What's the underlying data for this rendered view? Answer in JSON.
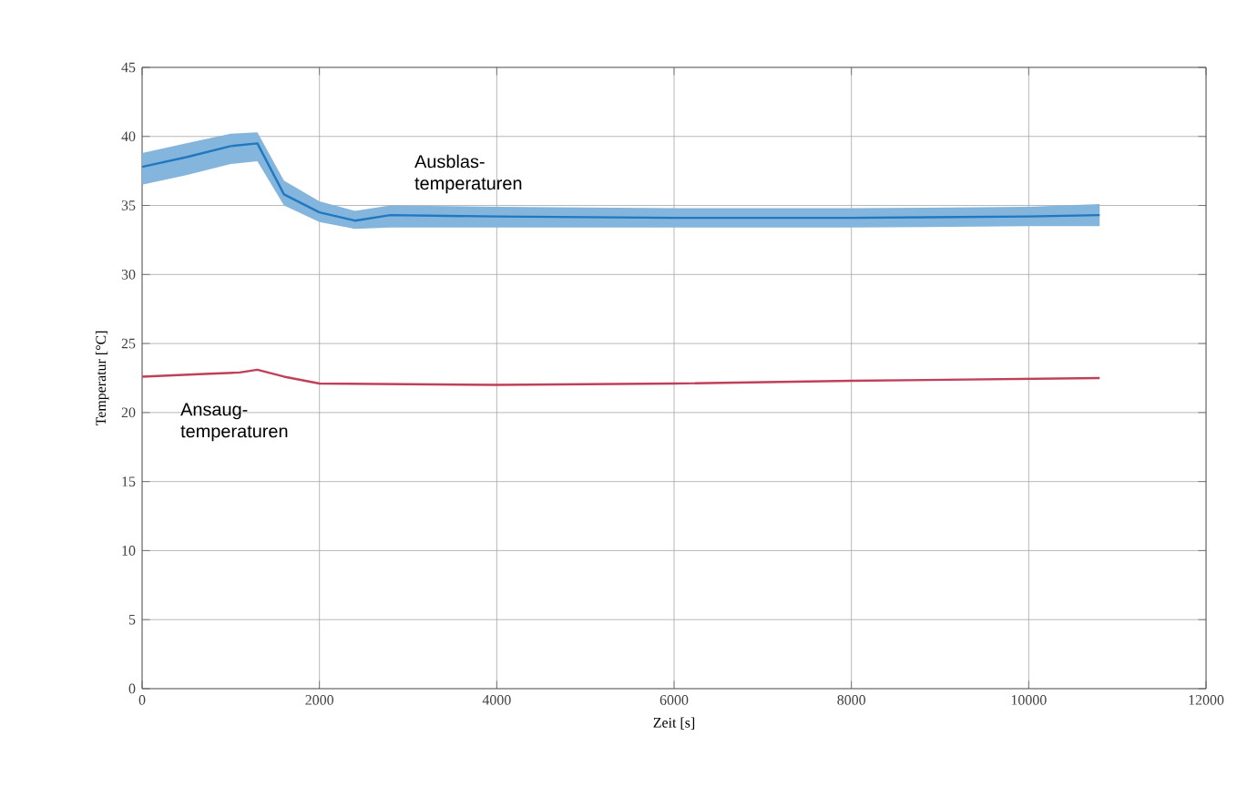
{
  "chart_data": {
    "type": "line",
    "xlabel": "Zeit [s]",
    "ylabel": "Temperatur [°C]",
    "xlim": [
      0,
      12000
    ],
    "ylim": [
      0,
      45
    ],
    "xticks": [
      0,
      2000,
      4000,
      6000,
      8000,
      10000,
      12000
    ],
    "yticks": [
      0,
      5,
      10,
      15,
      20,
      25,
      30,
      35,
      40,
      45
    ],
    "grid": true,
    "legend": false,
    "marker": "none",
    "line_style": "solid",
    "series": [
      {
        "name": "Ausblas-temperaturen",
        "color": "#1f78c0",
        "x": [
          0,
          500,
          1000,
          1300,
          1600,
          2000,
          2400,
          2800,
          4000,
          6000,
          8000,
          10000,
          10800
        ],
        "values": [
          37.8,
          38.5,
          39.3,
          39.5,
          35.8,
          34.5,
          33.9,
          34.3,
          34.2,
          34.1,
          34.1,
          34.2,
          34.3
        ],
        "lower": [
          36.5,
          37.2,
          38.0,
          38.2,
          35.0,
          33.8,
          33.3,
          33.4,
          33.4,
          33.4,
          33.4,
          33.5,
          33.5
        ],
        "upper": [
          38.8,
          39.5,
          40.2,
          40.3,
          36.8,
          35.3,
          34.6,
          35.0,
          34.9,
          34.8,
          34.8,
          34.9,
          35.1
        ]
      },
      {
        "name": "Ansaug-temperaturen",
        "color": "#c0405a",
        "x": [
          0,
          700,
          1100,
          1300,
          1600,
          2000,
          4000,
          6000,
          8000,
          10800
        ],
        "values": [
          22.6,
          22.8,
          22.9,
          23.1,
          22.6,
          22.1,
          22.0,
          22.1,
          22.3,
          22.5
        ]
      }
    ]
  }
}
